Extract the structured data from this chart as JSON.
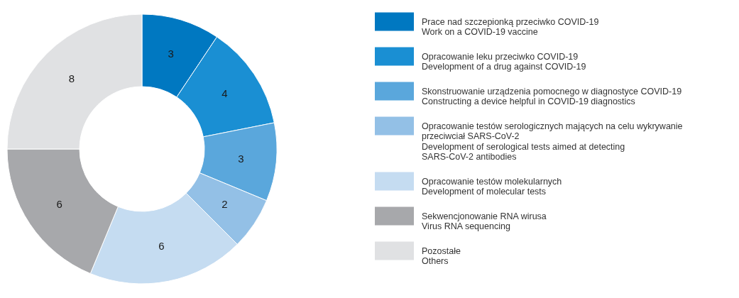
{
  "chart_data": {
    "type": "donut",
    "legend": "right",
    "data_labels": true,
    "categories": [
      "Prace nad szczepionką przeciwko COVID-19\nWork on a COVID-19 vaccine",
      "Opracowanie leku przeciwko COVID-19\nDevelopment of a drug against COVID-19",
      "Skonstruowanie urządzenia pomocnego w diagnostyce COVID-19\nConstructing a device helpful in COVID-19 diagnostics",
      "Opracowanie testów serologicznych mających na celu wykrywanie przeciwciał SARS-CoV-2\nDevelopment of serological tests aimed at detecting SARS-CoV-2 antibodies",
      "Opracowanie testów molekularnych\nDevelopment of molecular tests",
      "Sekwencjonowanie RNA wirusa\nVirus RNA sequencing",
      "Pozostałe\nOthers"
    ],
    "values": [
      3,
      4,
      3,
      2,
      6,
      6,
      8
    ],
    "colors": [
      "#0078c1",
      "#1a8fd3",
      "#5aa7dc",
      "#93c0e6",
      "#c5dcf1",
      "#a7a8ab",
      "#e0e1e3"
    ]
  }
}
